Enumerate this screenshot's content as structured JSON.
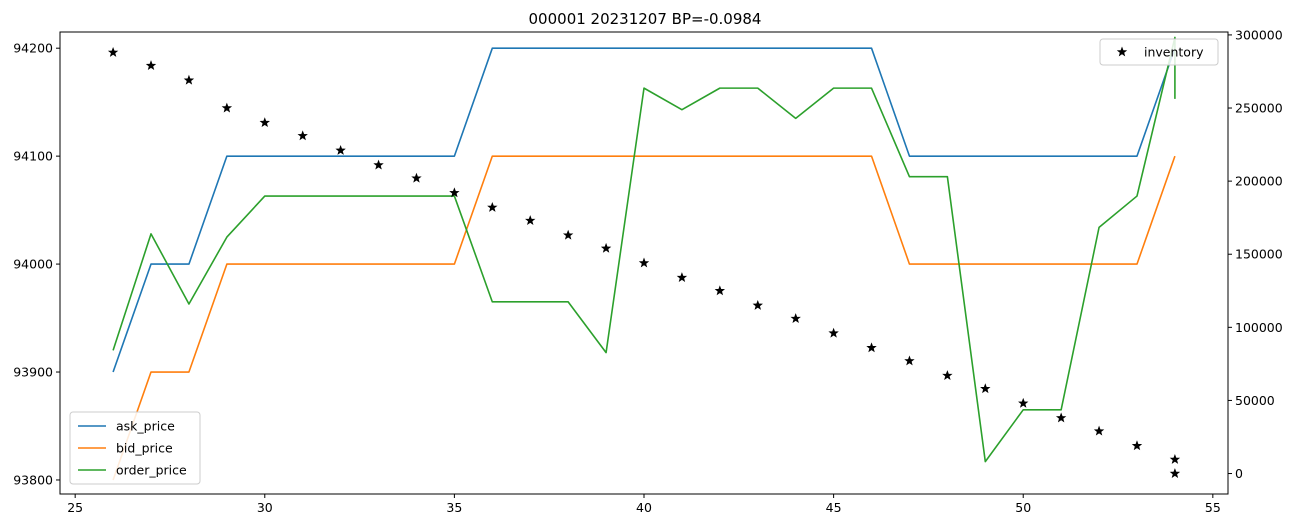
{
  "chart_data": {
    "type": "line",
    "title": "000001 20231207 BP=-0.0984",
    "x": [
      26,
      27,
      28,
      29,
      30,
      31,
      32,
      33,
      34,
      35,
      36,
      37,
      38,
      39,
      40,
      41,
      42,
      43,
      44,
      45,
      46,
      47,
      48,
      49,
      50,
      51,
      52,
      53,
      54
    ],
    "xlim": [
      24.6,
      55.4
    ],
    "xticks": [
      25,
      30,
      35,
      40,
      45,
      50,
      55
    ],
    "y_left": {
      "lim": [
        93787,
        94215
      ],
      "ticks": [
        93800,
        93900,
        94000,
        94100,
        94200
      ]
    },
    "y_right": {
      "lim": [
        -14000,
        302000
      ],
      "ticks": [
        0,
        50000,
        100000,
        150000,
        200000,
        250000,
        300000
      ]
    },
    "series": [
      {
        "name": "ask_price",
        "axis": "left",
        "style": "line",
        "color": "#1f77b4",
        "x": [
          26,
          27,
          28,
          29,
          30,
          31,
          32,
          33,
          34,
          35,
          36,
          37,
          38,
          39,
          40,
          41,
          42,
          43,
          44,
          45,
          46,
          47,
          48,
          49,
          50,
          51,
          52,
          53,
          54
        ],
        "values": [
          93900,
          94000,
          94000,
          94100,
          94100,
          94100,
          94100,
          94100,
          94100,
          94100,
          94200,
          94200,
          94200,
          94200,
          94200,
          94200,
          94200,
          94200,
          94200,
          94200,
          94200,
          94100,
          94100,
          94100,
          94100,
          94100,
          94100,
          94100,
          94200
        ]
      },
      {
        "name": "bid_price",
        "axis": "left",
        "style": "line",
        "color": "#ff7f0e",
        "x": [
          26,
          27,
          28,
          29,
          30,
          31,
          32,
          33,
          34,
          35,
          36,
          37,
          38,
          39,
          40,
          41,
          42,
          43,
          44,
          45,
          46,
          47,
          48,
          49,
          50,
          51,
          52,
          53,
          54
        ],
        "values": [
          93800,
          93900,
          93900,
          94000,
          94000,
          94000,
          94000,
          94000,
          94000,
          94000,
          94100,
          94100,
          94100,
          94100,
          94100,
          94100,
          94100,
          94100,
          94100,
          94100,
          94100,
          94000,
          94000,
          94000,
          94000,
          94000,
          94000,
          94000,
          94100
        ]
      },
      {
        "name": "order_price",
        "axis": "left",
        "style": "line",
        "color": "#2ca02c",
        "x": [
          26,
          27,
          28,
          29,
          30,
          31,
          32,
          33,
          34,
          35,
          36,
          37,
          38,
          39,
          40,
          41,
          42,
          43,
          44,
          45,
          46,
          47,
          48,
          49,
          50,
          51,
          52,
          53,
          54,
          54
        ],
        "values": [
          93920,
          94028,
          93963,
          94025,
          94063,
          94063,
          94063,
          94063,
          94063,
          94063,
          93965,
          93965,
          93965,
          93918,
          94163,
          94143,
          94163,
          94163,
          94135,
          94163,
          94163,
          94081,
          94081,
          93817,
          93865,
          93865,
          94034,
          94063,
          94210,
          94153
        ]
      },
      {
        "name": "inventory",
        "axis": "right",
        "style": "marker",
        "marker": "star",
        "color": "#000000",
        "x": [
          26,
          27,
          28,
          29,
          30,
          31,
          32,
          33,
          34,
          35,
          36,
          37,
          38,
          39,
          40,
          41,
          42,
          43,
          44,
          45,
          46,
          47,
          48,
          49,
          50,
          51,
          52,
          53,
          54,
          54
        ],
        "values": [
          288000,
          279000,
          269000,
          250000,
          240000,
          231000,
          221000,
          211000,
          202000,
          192000,
          182000,
          173000,
          163000,
          154000,
          144000,
          134000,
          125000,
          115000,
          106000,
          96000,
          86000,
          77000,
          67000,
          58000,
          48000,
          38000,
          29000,
          19000,
          9600,
          0
        ]
      }
    ],
    "legend_left": {
      "placement": "lower-left",
      "entries": [
        "ask_price",
        "bid_price",
        "order_price"
      ]
    },
    "legend_right": {
      "placement": "upper-right",
      "entries": [
        "inventory"
      ]
    },
    "grid": false
  }
}
